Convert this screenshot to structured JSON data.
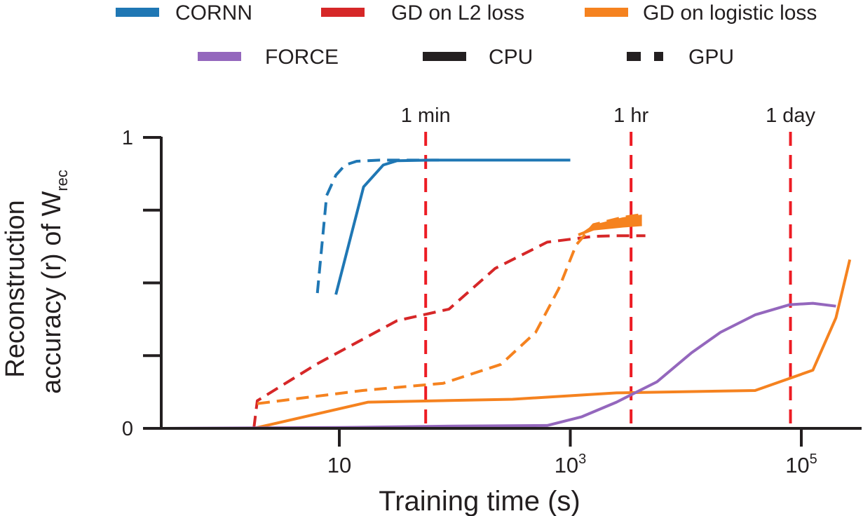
{
  "chart_data": {
    "type": "line",
    "title": "",
    "xlabel": "Training time (s)",
    "ylabel": "Reconstruction",
    "ylabel_line2": "accuracy (r) of W",
    "ylabel_subscript": "rec",
    "xscale": "log10",
    "xlim_log10": [
      -0.54,
      5.53
    ],
    "ylim": [
      0,
      1
    ],
    "grid": false,
    "x_ticks": [
      {
        "log10": 1,
        "base": "10",
        "exp": ""
      },
      {
        "log10": 3,
        "base": "10",
        "exp": "3"
      },
      {
        "log10": 5,
        "base": "10",
        "exp": "5"
      }
    ],
    "y_ticks": [
      0,
      0.25,
      0.5,
      0.75,
      1
    ],
    "y_tick_labels": [
      {
        "value": 0,
        "label": "0"
      },
      {
        "value": 1,
        "label": "1"
      }
    ],
    "vlines": [
      {
        "label": "1 min",
        "seconds": 60
      },
      {
        "label": "1 hr",
        "seconds": 3600
      },
      {
        "label": "1 day",
        "seconds": 86400
      }
    ],
    "legend": {
      "placement": "top",
      "items": [
        {
          "label": "CORNN",
          "color": "#1f77b4",
          "kind": "solid"
        },
        {
          "label": "GD on L2 loss",
          "color": "#d62728",
          "kind": "solid"
        },
        {
          "label": "GD on logistic loss",
          "color": "#f5821f",
          "kind": "solid"
        },
        {
          "label": "FORCE",
          "color": "#9467bd",
          "kind": "solid"
        },
        {
          "label": "CPU",
          "color": "#231f20",
          "kind": "solid"
        },
        {
          "label": "GPU",
          "color": "#231f20",
          "kind": "dashed"
        }
      ]
    },
    "vline_color": "#ed1c24",
    "axis_color": "#231f20",
    "series": [
      {
        "name": "CORNN (CPU)",
        "color": "#1f77b4",
        "dashed": false,
        "points": [
          [
            0.97,
            0.46
          ],
          [
            1.21,
            0.83
          ],
          [
            1.38,
            0.905
          ],
          [
            1.5,
            0.92
          ],
          [
            1.8,
            0.922
          ],
          [
            2.6,
            0.922
          ],
          [
            3.0,
            0.922
          ]
        ]
      },
      {
        "name": "CORNN (GPU)",
        "color": "#1f77b4",
        "dashed": true,
        "points": [
          [
            0.81,
            0.465
          ],
          [
            0.89,
            0.8
          ],
          [
            0.97,
            0.87
          ],
          [
            1.05,
            0.905
          ],
          [
            1.15,
            0.918
          ],
          [
            1.35,
            0.922
          ],
          [
            1.9,
            0.922
          ]
        ]
      },
      {
        "name": "GD on L2 loss (GPU)",
        "color": "#d62728",
        "dashed": true,
        "points": [
          [
            0.26,
            0.0
          ],
          [
            0.29,
            0.095
          ],
          [
            0.8,
            0.22
          ],
          [
            1.5,
            0.37
          ],
          [
            1.95,
            0.41
          ],
          [
            2.35,
            0.55
          ],
          [
            2.8,
            0.64
          ],
          [
            3.2,
            0.66
          ],
          [
            3.4,
            0.662
          ],
          [
            3.65,
            0.662
          ]
        ]
      },
      {
        "name": "GD on logistic loss (CPU)",
        "color": "#f5821f",
        "dashed": false,
        "points": [
          [
            0.26,
            0.0
          ],
          [
            1.25,
            0.09
          ],
          [
            2.5,
            0.1
          ],
          [
            3.4,
            0.122
          ],
          [
            4.6,
            0.13
          ],
          [
            5.1,
            0.2
          ],
          [
            5.3,
            0.38
          ],
          [
            5.42,
            0.58
          ]
        ]
      },
      {
        "name": "GD on logistic loss (GPU)",
        "color": "#f5821f",
        "dashed": true,
        "points": [
          [
            0.29,
            0.085
          ],
          [
            1.2,
            0.13
          ],
          [
            1.9,
            0.155
          ],
          [
            2.4,
            0.22
          ],
          [
            2.7,
            0.33
          ],
          [
            2.9,
            0.48
          ],
          [
            3.05,
            0.63
          ],
          [
            3.2,
            0.7
          ],
          [
            3.45,
            0.725
          ],
          [
            3.62,
            0.735
          ]
        ]
      },
      {
        "name": "GD on logistic loss (GPU, oscillation band lower)",
        "color": "#f5821f",
        "dashed": false,
        "band_lower": true,
        "points": [
          [
            3.07,
            0.665
          ],
          [
            3.2,
            0.685
          ],
          [
            3.45,
            0.695
          ],
          [
            3.62,
            0.7
          ]
        ]
      },
      {
        "name": "FORCE (CPU)",
        "color": "#9467bd",
        "dashed": false,
        "points": [
          [
            -0.5,
            0.0
          ],
          [
            1.0,
            0.003
          ],
          [
            2.0,
            0.008
          ],
          [
            2.8,
            0.01
          ],
          [
            3.1,
            0.04
          ],
          [
            3.4,
            0.09
          ],
          [
            3.75,
            0.16
          ],
          [
            4.05,
            0.26
          ],
          [
            4.3,
            0.33
          ],
          [
            4.6,
            0.39
          ],
          [
            4.9,
            0.425
          ],
          [
            5.1,
            0.43
          ],
          [
            5.3,
            0.42
          ]
        ]
      }
    ]
  }
}
